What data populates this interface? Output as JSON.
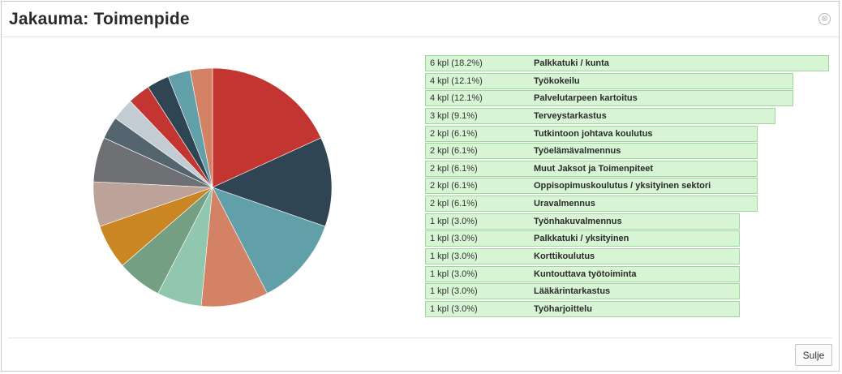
{
  "dialog": {
    "title": "Jakauma: Toimenpide",
    "close_icon_glyph": "⊗",
    "close_button_label": "Sulje"
  },
  "chart_data": {
    "type": "bar",
    "categories": [
      "Palkkatuki / kunta",
      "Työkokeilu",
      "Palvelutarpeen kartoitus",
      "Terveystarkastus",
      "Tutkintoon johtava koulutus",
      "Työelämävalmennus",
      "Muut Jaksot ja Toimenpiteet",
      "Oppisopimuskoulutus / yksityinen sektori",
      "Uravalmennus",
      "Työnhakuvalmennus",
      "Palkkatuki / yksityinen",
      "Korttikoulutus",
      "Kuntouttava työtoiminta",
      "Lääkärintarkastus",
      "Työharjoittelu"
    ],
    "values": [
      6,
      4,
      4,
      3,
      2,
      2,
      2,
      2,
      2,
      1,
      1,
      1,
      1,
      1,
      1
    ],
    "value_labels": [
      "6 kpl (18.2%)",
      "4 kpl (12.1%)",
      "4 kpl (12.1%)",
      "3 kpl (9.1%)",
      "2 kpl (6.1%)",
      "2 kpl (6.1%)",
      "2 kpl (6.1%)",
      "2 kpl (6.1%)",
      "2 kpl (6.1%)",
      "1 kpl (3.0%)",
      "1 kpl (3.0%)",
      "1 kpl (3.0%)",
      "1 kpl (3.0%)",
      "1 kpl (3.0%)",
      "1 kpl (3.0%)"
    ],
    "pie_colors": [
      "#c23531",
      "#2f4554",
      "#61a0a8",
      "#d48265",
      "#91c7ae",
      "#749f83",
      "#ca8622",
      "#bda29a",
      "#6e7074",
      "#546570",
      "#c4ccd3",
      "#c23531",
      "#2f4554",
      "#61a0a8",
      "#d48265"
    ],
    "bar_fill": "#d7f5d4",
    "bar_border": "#9ed89a"
  }
}
